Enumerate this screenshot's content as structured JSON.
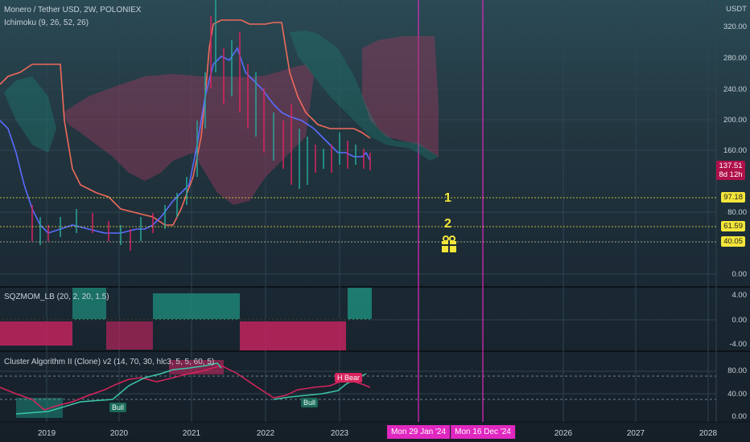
{
  "header": {
    "symbol_title": "Monero / Tether USD, 2W, POLONIEX",
    "indicator_ichimoku": "Ichimoku (9, 26, 52, 26)",
    "currency": "USDT"
  },
  "price_axis": {
    "labels": [
      "320.00",
      "280.00",
      "240.00",
      "200.00",
      "160.00",
      "80.00",
      "0.00"
    ]
  },
  "price_tags": {
    "last_price": "137.51",
    "countdown": "8d 12h",
    "level_1": "97.18",
    "level_2": "61.59",
    "level_3": "40.05"
  },
  "annotations": {
    "marker_1": "1",
    "marker_2": "2",
    "gift_icon": "gift-icon"
  },
  "squeeze_panel": {
    "title": "SQZMOM_LB (20, 2, 20, 1.5)",
    "labels": [
      "4.00",
      "0.00",
      "-4.00"
    ]
  },
  "cluster_panel": {
    "title": "Cluster Algorithm II (Clone) v2 (14, 70, 30, hlc3, 5, 5, 60, 5)",
    "labels": [
      "80.00",
      "40.00",
      "0.00"
    ],
    "tag_bull_1": "Bull",
    "tag_bull_2": "Bull",
    "tag_bear": "H Bear"
  },
  "time_axis": {
    "years": [
      "2019",
      "2020",
      "2021",
      "2022",
      "2023",
      "2026",
      "2027",
      "2028"
    ],
    "date_marker_1": "Mon 29 Jan '24",
    "date_marker_2": "Mon 16 Dec '24"
  },
  "colors": {
    "accent_magenta": "#e028c0",
    "price_up": "#26a69a",
    "price_down": "#d8245e",
    "level_yellow": "#f5e63a"
  }
}
